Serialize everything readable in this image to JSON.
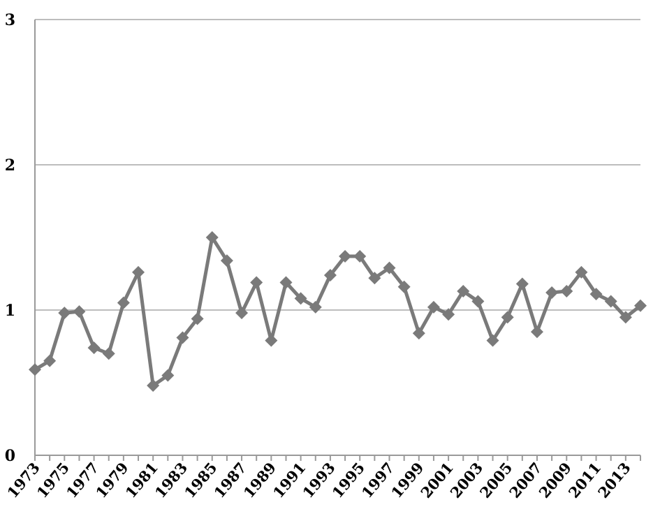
{
  "chart_data": {
    "type": "line",
    "title": "",
    "xlabel": "",
    "ylabel": "",
    "ylim": [
      0,
      3
    ],
    "yticks": [
      0,
      1,
      2,
      3
    ],
    "grid": "horizontal",
    "legend": "none",
    "colors": {
      "line": "#7a7a7a",
      "grid": "#bdbdbd",
      "axis": "#9a9a9a"
    },
    "x": [
      1973,
      1974,
      1975,
      1976,
      1977,
      1978,
      1979,
      1980,
      1981,
      1982,
      1983,
      1984,
      1985,
      1986,
      1987,
      1988,
      1989,
      1990,
      1991,
      1992,
      1993,
      1994,
      1995,
      1996,
      1997,
      1998,
      1999,
      2000,
      2001,
      2002,
      2003,
      2004,
      2005,
      2006,
      2007,
      2008,
      2009,
      2010,
      2011,
      2012,
      2013,
      2014
    ],
    "x_tick_labels": [
      "1973",
      "1975",
      "1977",
      "1979",
      "1981",
      "1983",
      "1985",
      "1987",
      "1989",
      "1991",
      "1993",
      "1995",
      "1997",
      "1999",
      "2001",
      "2003",
      "2005",
      "2007",
      "2009",
      "2011",
      "2013"
    ],
    "series": [
      {
        "values": [
          0.59,
          0.65,
          0.98,
          0.99,
          0.74,
          0.7,
          1.05,
          1.26,
          0.48,
          0.55,
          0.81,
          0.94,
          1.5,
          1.34,
          0.98,
          1.19,
          0.79,
          1.19,
          1.08,
          1.02,
          1.24,
          1.37,
          1.37,
          1.22,
          1.29,
          1.16,
          0.84,
          1.02,
          0.97,
          1.13,
          1.06,
          0.79,
          0.95,
          1.18,
          0.85,
          1.12,
          1.13,
          1.26,
          1.11,
          1.06,
          0.95,
          1.03
        ]
      }
    ]
  }
}
